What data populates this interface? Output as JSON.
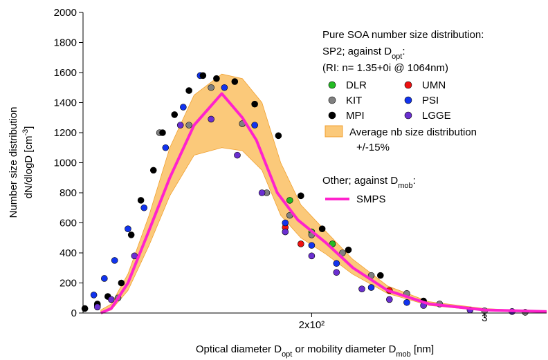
{
  "chart_data": {
    "type": "scatter",
    "xlabel": [
      {
        "text": "Optical diameter D"
      },
      {
        "text": "opt",
        "sub": true
      },
      {
        "text": " or mobility diameter  D"
      },
      {
        "text": "mob",
        "sub": true
      },
      {
        "text": " [nm]"
      }
    ],
    "ylabel": [
      [
        {
          "text": "Number size distribution"
        }
      ],
      [
        {
          "text": "dN/dlogD [cm"
        },
        {
          "text": "-3",
          "sup": true
        },
        {
          "text": "]"
        }
      ]
    ],
    "xscale": "log",
    "xlim": [
      117,
      347
    ],
    "ylim": [
      0,
      2000
    ],
    "xticks": [
      {
        "value": 200,
        "label": "2x10²"
      },
      {
        "value": 300,
        "label": "3"
      }
    ],
    "yticks": [
      0,
      200,
      400,
      600,
      800,
      1000,
      1200,
      1400,
      1600,
      1800,
      2000
    ],
    "legend_title": [
      [
        {
          "text": "Pure SOA number size distribution:"
        }
      ],
      [
        {
          "text": "SP2; against D"
        },
        {
          "text": "opt",
          "sub": true
        },
        {
          "text": ":"
        }
      ],
      [
        {
          "text": "(RI: n= 1.35+0i @ 1064nm)"
        }
      ]
    ],
    "series": [
      {
        "name": "DLR",
        "color": "#22bb22",
        "x": [
          190,
          200,
          210
        ],
        "values": [
          750,
          540,
          460
        ]
      },
      {
        "name": "UMN",
        "color": "#ee1111",
        "x": [
          188,
          195,
          240
        ],
        "values": [
          570,
          460,
          150
        ]
      },
      {
        "name": "KIT",
        "color": "#808080",
        "x": [
          121,
          127,
          140,
          150,
          158,
          170,
          180,
          190,
          200,
          215,
          230,
          250,
          270,
          300,
          330
        ],
        "values": [
          50,
          100,
          1200,
          1250,
          1500,
          1260,
          800,
          650,
          520,
          400,
          250,
          130,
          60,
          15,
          5
        ]
      },
      {
        "name": "PSI",
        "color": "#1133ee",
        "x": [
          120,
          123,
          126,
          130,
          135,
          142,
          148,
          154,
          163,
          175,
          188,
          200,
          212,
          230,
          250
        ],
        "values": [
          120,
          230,
          350,
          560,
          700,
          1100,
          1370,
          1580,
          1500,
          1250,
          600,
          450,
          330,
          170,
          70
        ]
      },
      {
        "name": "MPI",
        "color": "#000000",
        "x": [
          117.5,
          121,
          124,
          128,
          131,
          134,
          138,
          141,
          145,
          150,
          155,
          160,
          167,
          175,
          185,
          195,
          205,
          218,
          235,
          260
        ],
        "values": [
          30,
          60,
          110,
          200,
          520,
          750,
          950,
          1200,
          1320,
          1480,
          1580,
          1560,
          1540,
          1390,
          1180,
          780,
          560,
          420,
          250,
          80
        ]
      },
      {
        "name": "LGGE",
        "color": "#6a2fd0",
        "x": [
          121,
          125,
          132,
          147,
          158,
          168,
          178,
          188,
          200,
          212,
          225,
          240,
          260,
          290,
          320
        ],
        "values": [
          40,
          90,
          380,
          1250,
          1290,
          1050,
          800,
          540,
          380,
          270,
          160,
          90,
          50,
          20,
          10
        ]
      }
    ],
    "band": {
      "name": "Average nb size distribution",
      "name2": "+/-15%",
      "color": "#fbc97a",
      "x": [
        122,
        125,
        130,
        136.6,
        143.4,
        151.8,
        162,
        170,
        178,
        186,
        195,
        207,
        220,
        239,
        263.5,
        300,
        347
      ],
      "upper": [
        20,
        60,
        260,
        650,
        1100,
        1450,
        1590,
        1560,
        1400,
        1000,
        720,
        540,
        360,
        180,
        75,
        30,
        10
      ],
      "lower": [
        0,
        20,
        150,
        450,
        780,
        1050,
        1100,
        1080,
        950,
        650,
        500,
        390,
        260,
        130,
        50,
        15,
        5
      ]
    },
    "other_title": [
      {
        "text": "Other; against D"
      },
      {
        "text": "mob",
        "sub": true
      },
      {
        "text": ":"
      }
    ],
    "line": {
      "name": "SMPS",
      "color": "#ff22cc",
      "x": [
        122,
        125,
        130,
        136.6,
        143.4,
        151.8,
        162,
        170,
        175.7,
        184.5,
        193.6,
        206.6,
        220.4,
        239,
        263.5,
        300,
        347
      ],
      "values": [
        0,
        30,
        200,
        550,
        900,
        1250,
        1460,
        1300,
        1150,
        800,
        620,
        470,
        300,
        150,
        60,
        20,
        10
      ]
    }
  }
}
